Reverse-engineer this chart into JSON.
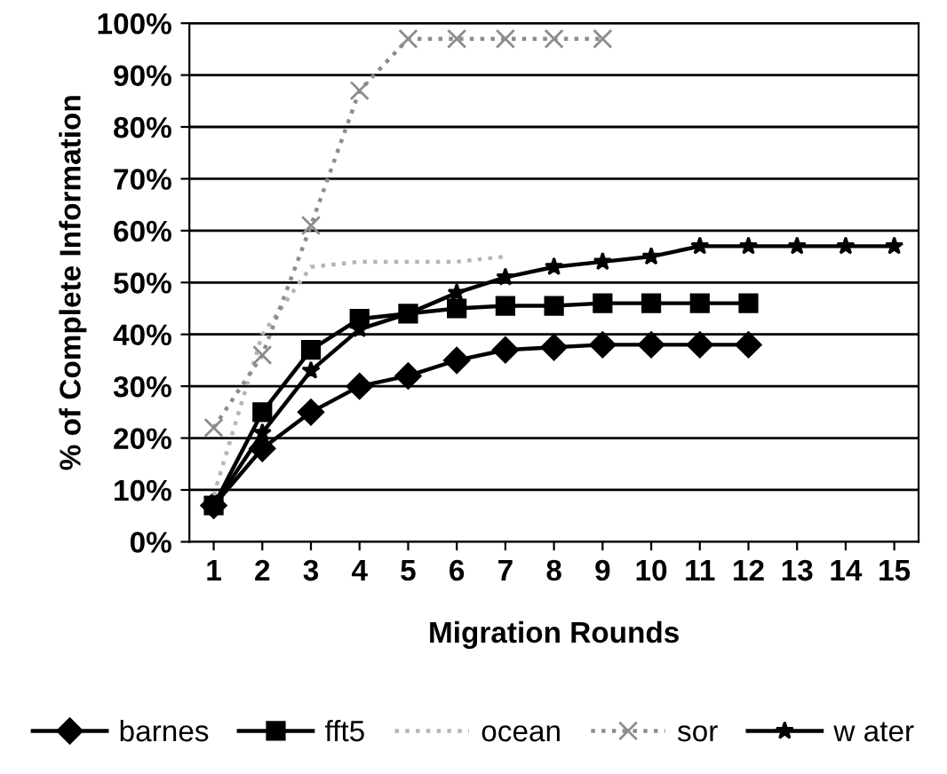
{
  "chart_data": {
    "type": "line",
    "xlabel": "Migration Rounds",
    "ylabel": "% of Complete Information",
    "x": [
      1,
      2,
      3,
      4,
      5,
      6,
      7,
      8,
      9,
      10,
      11,
      12,
      13,
      14,
      15
    ],
    "xlim": [
      0.5,
      15.5
    ],
    "xticks": [
      1,
      2,
      3,
      4,
      5,
      6,
      7,
      8,
      9,
      10,
      11,
      12,
      13,
      14,
      15
    ],
    "ylim": [
      0,
      100
    ],
    "yticks": [
      {
        "value": 0,
        "label": "0%"
      },
      {
        "value": 10,
        "label": "10%"
      },
      {
        "value": 20,
        "label": "20%"
      },
      {
        "value": 30,
        "label": "30%"
      },
      {
        "value": 40,
        "label": "40%"
      },
      {
        "value": 50,
        "label": "50%"
      },
      {
        "value": 60,
        "label": "60%"
      },
      {
        "value": 70,
        "label": "70%"
      },
      {
        "value": 80,
        "label": "80%"
      },
      {
        "value": 90,
        "label": "90%"
      },
      {
        "value": 100,
        "label": "100%"
      }
    ],
    "grid": "y",
    "legend": "bottom",
    "series": [
      {
        "name": "barnes",
        "color": "#000000",
        "marker": "diamond",
        "line_style": "solid",
        "values": [
          7,
          18,
          25,
          30,
          32,
          35,
          37,
          37.5,
          38,
          38,
          38,
          38,
          null,
          null,
          null
        ]
      },
      {
        "name": "fft5",
        "color": "#000000",
        "marker": "square",
        "line_style": "solid",
        "values": [
          7,
          25,
          37,
          43,
          44,
          45,
          45.5,
          45.5,
          46,
          46,
          46,
          46,
          null,
          null,
          null
        ]
      },
      {
        "name": "ocean",
        "color": "#b4b4b4",
        "marker": "none",
        "line_style": "dotted",
        "values": [
          9,
          40,
          53,
          54,
          54,
          54,
          55,
          null,
          null,
          null,
          null,
          null,
          null,
          null,
          null
        ]
      },
      {
        "name": "sor",
        "color": "#8c8c8c",
        "marker": "cross",
        "line_style": "dotted",
        "values": [
          22,
          36,
          61,
          87,
          97,
          97,
          97,
          97,
          97,
          null,
          null,
          null,
          null,
          null,
          null
        ]
      },
      {
        "name": "w ater",
        "color": "#000000",
        "marker": "star",
        "line_style": "solid",
        "values": [
          7,
          21,
          33,
          41,
          44,
          48,
          51,
          53,
          54,
          55,
          57,
          57,
          57,
          57,
          57
        ]
      }
    ]
  }
}
